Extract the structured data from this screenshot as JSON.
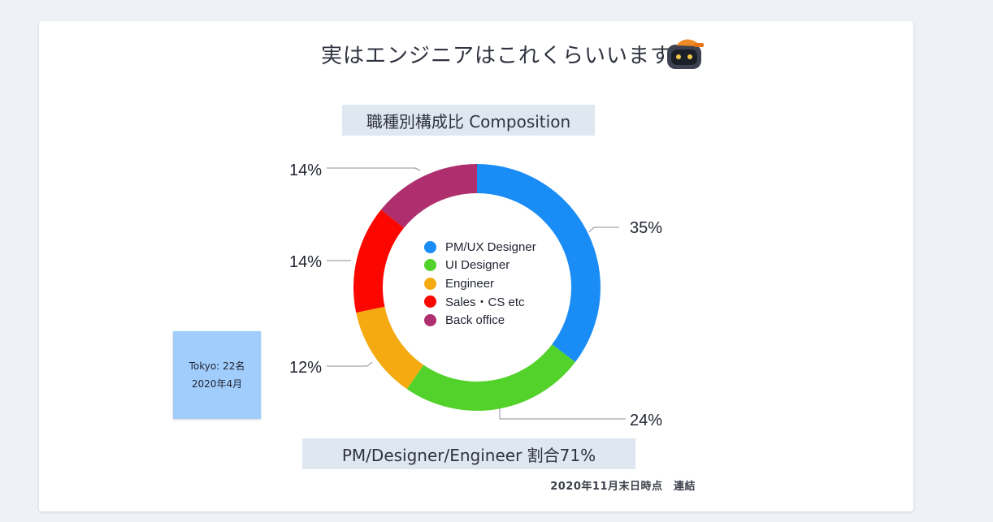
{
  "slide": {
    "title": "実はエンジニアはこれくらいいます",
    "subtitle": "職種別構成比 Composition",
    "note": {
      "line1": "Tokyo: 22名",
      "line2": "2020年4月"
    },
    "summary": "PM/Designer/Engineer 割合71%",
    "footnote": "2020年11月末日時点　連結",
    "robot_icon": "robot-helmet-icon"
  },
  "chart_data": {
    "type": "pie",
    "donut": true,
    "series": [
      {
        "name": "PM/UX Designer",
        "value": 35,
        "label": "35%",
        "color": "#1a8cf5"
      },
      {
        "name": "UI Designer",
        "value": 24,
        "label": "24%",
        "color": "#52d22a"
      },
      {
        "name": "Engineer",
        "value": 12,
        "label": "12%",
        "color": "#f4aa10"
      },
      {
        "name": "Sales・CS etc",
        "value": 14,
        "label": "14%",
        "color": "#fb0700"
      },
      {
        "name": "Back office",
        "value": 14,
        "label": "14%",
        "color": "#ae2e6e"
      }
    ],
    "legend_position": "center"
  }
}
